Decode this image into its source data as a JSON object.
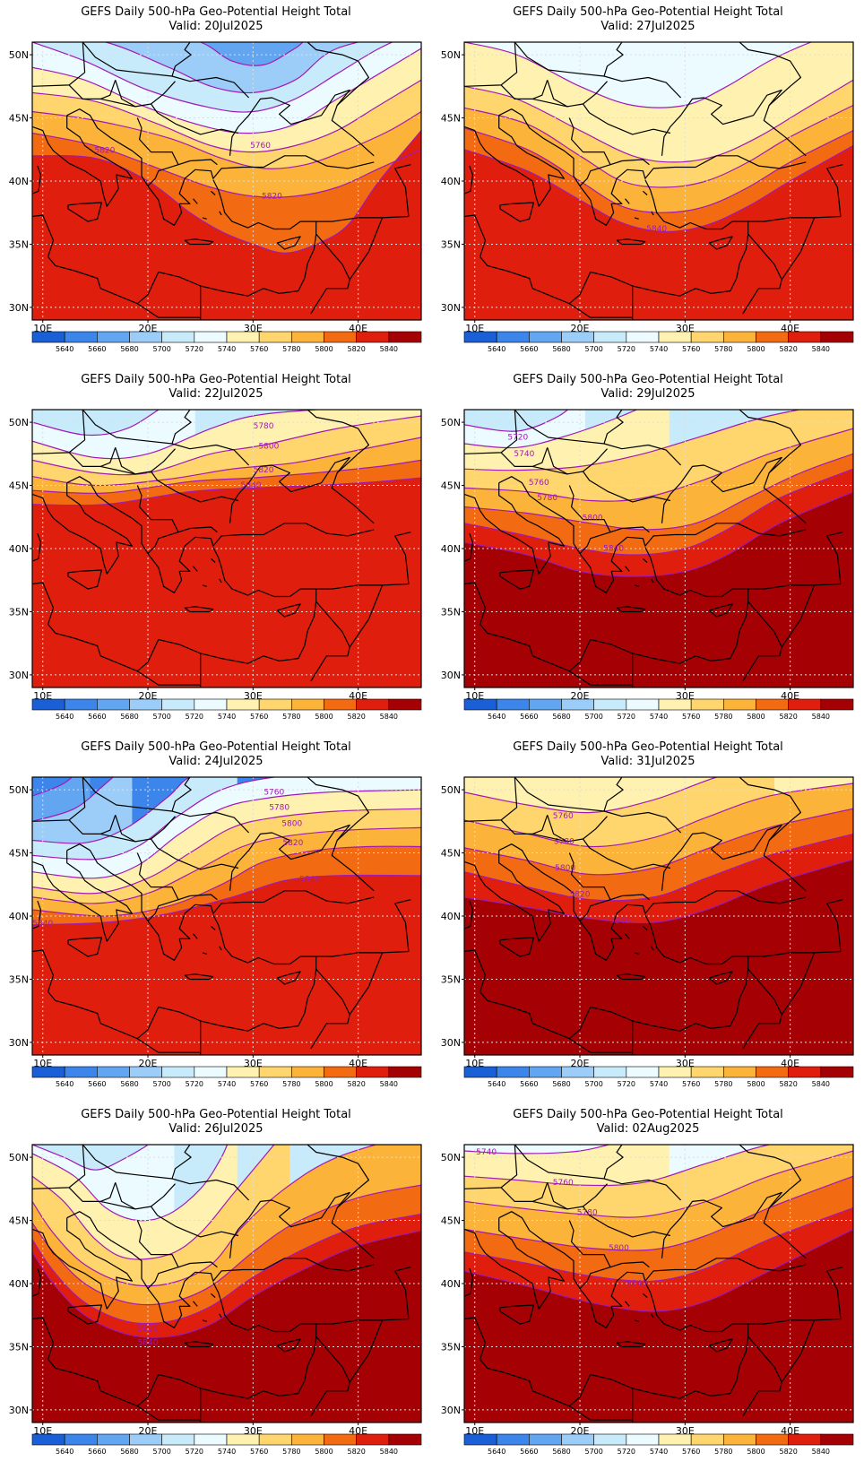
{
  "colors": {
    "contour_line": "#a01ab4",
    "grid_line": "#dddddd",
    "coast": "#000000",
    "levels": {
      "5640": "#1a5fd6",
      "5660": "#3c85ea",
      "5680": "#62a6f2",
      "5700": "#9ccdf8",
      "5720": "#c8ebfc",
      "5740": "#ebfbff",
      "5760": "#fff2b0",
      "5780": "#ffd56e",
      "5800": "#fbb33a",
      "5820": "#f26b12",
      "5840": "#e01e0d",
      "high": "#a50003"
    }
  },
  "colorbar_labels": [
    "5640",
    "5660",
    "5680",
    "5700",
    "5720",
    "5740",
    "5760",
    "5780",
    "5800",
    "5820",
    "5840"
  ],
  "lat_labels": [
    "50N",
    "45N",
    "40N",
    "35N",
    "30N"
  ],
  "lon_labels": [
    "10E",
    "20E",
    "30E",
    "40E"
  ],
  "panels": [
    {
      "title": "GEFS Daily 500-hPa Geo-Potential Height Total",
      "valid": "Valid:  20Jul2025",
      "contour_labels": [
        {
          "text": "5760",
          "lon": 30.7,
          "lat": 42.8
        },
        {
          "text": "5820",
          "lon": 15.9,
          "lat": 42.4
        },
        {
          "text": "5820",
          "lon": 31.8,
          "lat": 38.8
        }
      ]
    },
    {
      "title": "GEFS Daily 500-hPa Geo-Potential Height Total",
      "valid": "Valid:  27Jul2025",
      "contour_labels": [
        {
          "text": "5840",
          "lon": 27.3,
          "lat": 36.2
        }
      ]
    },
    {
      "title": "GEFS Daily 500-hPa Geo-Potential Height Total",
      "valid": "Valid:  22Jul2025",
      "contour_labels": [
        {
          "text": "5780",
          "lon": 31.0,
          "lat": 49.7
        },
        {
          "text": "5800",
          "lon": 31.5,
          "lat": 48.1
        },
        {
          "text": "5820",
          "lon": 31.0,
          "lat": 46.2
        },
        {
          "text": "5840",
          "lon": 29.8,
          "lat": 45.0
        }
      ]
    },
    {
      "title": "GEFS Daily 500-hPa Geo-Potential Height Total",
      "valid": "Valid:  29Jul2025",
      "contour_labels": [
        {
          "text": "5720",
          "lon": 14.1,
          "lat": 48.8
        },
        {
          "text": "5740",
          "lon": 14.7,
          "lat": 47.5
        },
        {
          "text": "5760",
          "lon": 16.1,
          "lat": 45.2
        },
        {
          "text": "5780",
          "lon": 16.9,
          "lat": 44.0
        },
        {
          "text": "5800",
          "lon": 21.2,
          "lat": 42.4
        },
        {
          "text": "5840",
          "lon": 23.2,
          "lat": 40.0
        }
      ]
    },
    {
      "title": "GEFS Daily 500-hPa Geo-Potential Height Total",
      "valid": "Valid:  24Jul2025",
      "contour_labels": [
        {
          "text": "5760",
          "lon": 32.0,
          "lat": 49.8
        },
        {
          "text": "5780",
          "lon": 32.5,
          "lat": 48.6
        },
        {
          "text": "5800",
          "lon": 33.7,
          "lat": 47.3
        },
        {
          "text": "5820",
          "lon": 33.8,
          "lat": 45.8
        },
        {
          "text": "5840",
          "lon": 35.4,
          "lat": 42.9
        },
        {
          "text": "5840",
          "lon": 10.0,
          "lat": 39.4
        }
      ]
    },
    {
      "title": "GEFS Daily 500-hPa Geo-Potential Height Total",
      "valid": "Valid:  31Jul2025",
      "contour_labels": [
        {
          "text": "5760",
          "lon": 18.4,
          "lat": 47.9
        },
        {
          "text": "5780",
          "lon": 18.5,
          "lat": 45.9
        },
        {
          "text": "5800",
          "lon": 18.6,
          "lat": 43.8
        },
        {
          "text": "5820",
          "lon": 20.0,
          "lat": 41.7
        },
        {
          "text": "5840",
          "lon": 23.8,
          "lat": 39.6
        }
      ]
    },
    {
      "title": "GEFS Daily 500-hPa Geo-Potential Height Total",
      "valid": "Valid:  26Jul2025",
      "contour_labels": [
        {
          "text": "5820",
          "lon": 20.0,
          "lat": 36.4
        },
        {
          "text": "5840",
          "lon": 20.0,
          "lat": 35.3
        }
      ]
    },
    {
      "title": "GEFS Daily 500-hPa Geo-Potential Height Total",
      "valid": "Valid:  02Aug2025",
      "contour_labels": [
        {
          "text": "5740",
          "lon": 11.1,
          "lat": 50.4
        },
        {
          "text": "5760",
          "lon": 18.4,
          "lat": 48.0
        },
        {
          "text": "5780",
          "lon": 20.7,
          "lat": 45.6
        },
        {
          "text": "5800",
          "lon": 23.7,
          "lat": 42.8
        },
        {
          "text": "5840",
          "lon": 25.4,
          "lat": 40.0
        }
      ]
    }
  ]
}
